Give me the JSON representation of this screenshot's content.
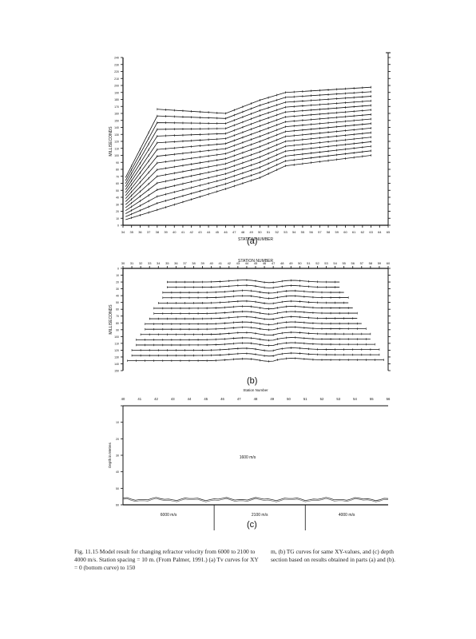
{
  "panels": {
    "a": {
      "label": "(a)",
      "ylabel": "MILLISECONDS",
      "xlabel": "STATION NUMBER",
      "xticks": [
        "34",
        "35",
        "36",
        "37",
        "38",
        "39",
        "40",
        "41",
        "42",
        "43",
        "44",
        "45",
        "46",
        "47",
        "48",
        "49",
        "50",
        "51",
        "52",
        "53",
        "54",
        "55",
        "56",
        "57",
        "58",
        "59",
        "60",
        "61",
        "62",
        "63",
        "64",
        "65"
      ],
      "yticks": [
        "0",
        "10",
        "20",
        "30",
        "40",
        "50",
        "60",
        "70",
        "80",
        "90",
        "100",
        "110",
        "120",
        "130",
        "140",
        "150",
        "160",
        "170",
        "180",
        "190",
        "200",
        "210",
        "220",
        "230",
        "240"
      ]
    },
    "b": {
      "label": "(b)",
      "ylabel": "MILLISECONDS",
      "xlabel": "STATION NUMBER",
      "xticks": [
        "30",
        "31",
        "32",
        "33",
        "34",
        "35",
        "36",
        "37",
        "38",
        "39",
        "40",
        "41",
        "42",
        "43",
        "44",
        "45",
        "46",
        "47",
        "48",
        "49",
        "50",
        "51",
        "52",
        "53",
        "54",
        "55",
        "56",
        "57",
        "58",
        "59",
        "60"
      ],
      "yticks": [
        "0",
        "10",
        "20",
        "30",
        "40",
        "50",
        "60",
        "70",
        "80",
        "90",
        "100",
        "110",
        "120",
        "130",
        "140",
        "150"
      ]
    },
    "c": {
      "label": "(c)",
      "title": "Station Number",
      "ylabel": "Depth in Metres",
      "xticks": [
        "40",
        "41",
        "42",
        "43",
        "44",
        "45",
        "46",
        "47",
        "48",
        "49",
        "50",
        "51",
        "52",
        "53",
        "54",
        "55",
        "56"
      ],
      "yticks": [
        "0",
        "10",
        "20",
        "30",
        "40",
        "50",
        "60"
      ],
      "upper_velocity": "1600 m/s",
      "refractor_velocities": [
        "6000 m/s",
        "2100 m/s",
        "4000 m/s"
      ]
    }
  },
  "chart_data": [
    {
      "type": "line",
      "panel": "(a)",
      "description_curves": 16,
      "xlabel": "STATION NUMBER",
      "ylabel": "MILLISECONDS",
      "xlim": [
        34,
        65
      ],
      "ylim": [
        0,
        240
      ],
      "curve_family": {
        "left_start_bottom": 8,
        "left_start_step": 9.6,
        "left_end_station": 38,
        "left_end_bottom": 22,
        "left_end_step": 9.6,
        "flat_left_end_station": 46,
        "flat_left_bottom": 52,
        "transition_end_station": 53,
        "transition_end_bottom": 85,
        "right_end_station": 63,
        "right_end_bottom": 100,
        "right_end_step": 6.5
      }
    },
    {
      "type": "line",
      "panel": "(b)",
      "curves": 16,
      "xlabel": "STATION NUMBER",
      "ylabel": "MILLISECONDS",
      "xlim": [
        30,
        60
      ],
      "ylim": [
        0,
        150
      ]
    },
    {
      "type": "line",
      "panel": "(c)",
      "xlabel": "Station Number",
      "ylabel": "Depth in Metres",
      "xlim": [
        40,
        56
      ],
      "ylim": [
        0,
        60
      ],
      "segments": [
        {
          "label": "6000 m/s",
          "from": 40,
          "to": 45.5
        },
        {
          "label": "2100 m/s",
          "from": 45.5,
          "to": 51
        },
        {
          "label": "4000 m/s",
          "from": 51,
          "to": 56
        }
      ]
    }
  ],
  "caption": {
    "left": "Fig. 11.15  Model result for changing refractor velocity from 6000 to 2100 to 4000 m/s. Station spacing = 10 m. (From Palmer, 1991.) (a) Tv curves for XY = 0 (bottom curve) to 150",
    "right": "m, (b) TG curves for same XY-values, and (c) depth section based on results obtained in parts (a) and (b)."
  }
}
